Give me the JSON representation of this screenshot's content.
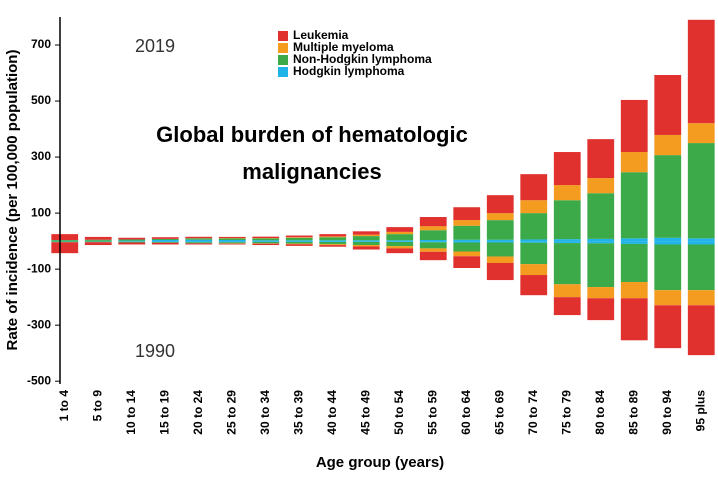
{
  "chart_data": {
    "type": "bar",
    "stacked": true,
    "title": [
      "Global burden of hematologic",
      "malignancies"
    ],
    "xlabel": "Age group (years)",
    "ylabel": "Rate of incidence (per 100,000 population)",
    "annotations": [
      "2019",
      "1990"
    ],
    "categories": [
      "1 to 4",
      "5 to 9",
      "10 to 14",
      "15 to 19",
      "20 to 24",
      "25 to 29",
      "30 to 34",
      "35 to 39",
      "40 to 44",
      "45 to 49",
      "50 to 54",
      "55 to 59",
      "60 to 64",
      "65 to 69",
      "70 to 74",
      "75 to 79",
      "80 to 84",
      "85 to 89",
      "90 to 94",
      "95 plus"
    ],
    "series": [
      {
        "name": "Leukemia",
        "color": "#e0312f",
        "values": [
          21,
          10,
          6,
          6,
          5,
          4,
          5,
          6,
          8,
          12,
          17,
          33,
          46,
          64,
          93,
          118,
          139,
          186,
          214,
          369
        ],
        "values_1990": [
          -39,
          -10,
          -7,
          -6,
          -4,
          -3,
          -5,
          -6,
          -6,
          -11,
          -17,
          -30,
          -42,
          -61,
          -72,
          -64,
          -78,
          -150,
          -153,
          -178
        ]
      },
      {
        "name": "Multiple myeloma",
        "color": "#f39c1f",
        "values": [
          0,
          0,
          0,
          0,
          0.5,
          1,
          1,
          2,
          3,
          5,
          8,
          14,
          20,
          25,
          46,
          54,
          54,
          72,
          72,
          71
        ],
        "values_1990": [
          0,
          0,
          0,
          0,
          0,
          -1,
          -1,
          -2,
          -3,
          -5,
          -8,
          -12,
          -17,
          -23,
          -39,
          -46,
          -40,
          -58,
          -54,
          -54
        ]
      },
      {
        "name": "Non-Hodgkin lymphoma",
        "color": "#3daa4a",
        "values": [
          3,
          4,
          4,
          4,
          5,
          6,
          7,
          9,
          11,
          15,
          22,
          35,
          50,
          70,
          94,
          139,
          163,
          236,
          295,
          340
        ],
        "values_1990": [
          -3,
          -3,
          -3,
          -3,
          -4,
          -4,
          -5,
          -6,
          -8,
          -11,
          -15,
          -22,
          -32,
          -50,
          -76,
          -147,
          -156,
          -136,
          -163,
          -163
        ]
      },
      {
        "name": "Hodgkin lymphoma",
        "color": "#1fb3e8",
        "values": [
          1,
          1,
          2,
          4,
          5,
          4,
          3,
          3,
          3,
          3,
          3,
          4,
          5,
          5,
          6,
          7,
          8,
          10,
          12,
          10
        ],
        "values_1990": [
          -1,
          -1,
          -2,
          -3,
          -4,
          -4,
          -3,
          -3,
          -3,
          -3,
          -3,
          -4,
          -5,
          -5,
          -6,
          -7,
          -8,
          -10,
          -12,
          -12
        ]
      }
    ],
    "ylim": [
      -510,
      800
    ],
    "yticks": [
      -500,
      -300,
      -100,
      100,
      300,
      500,
      700
    ]
  }
}
